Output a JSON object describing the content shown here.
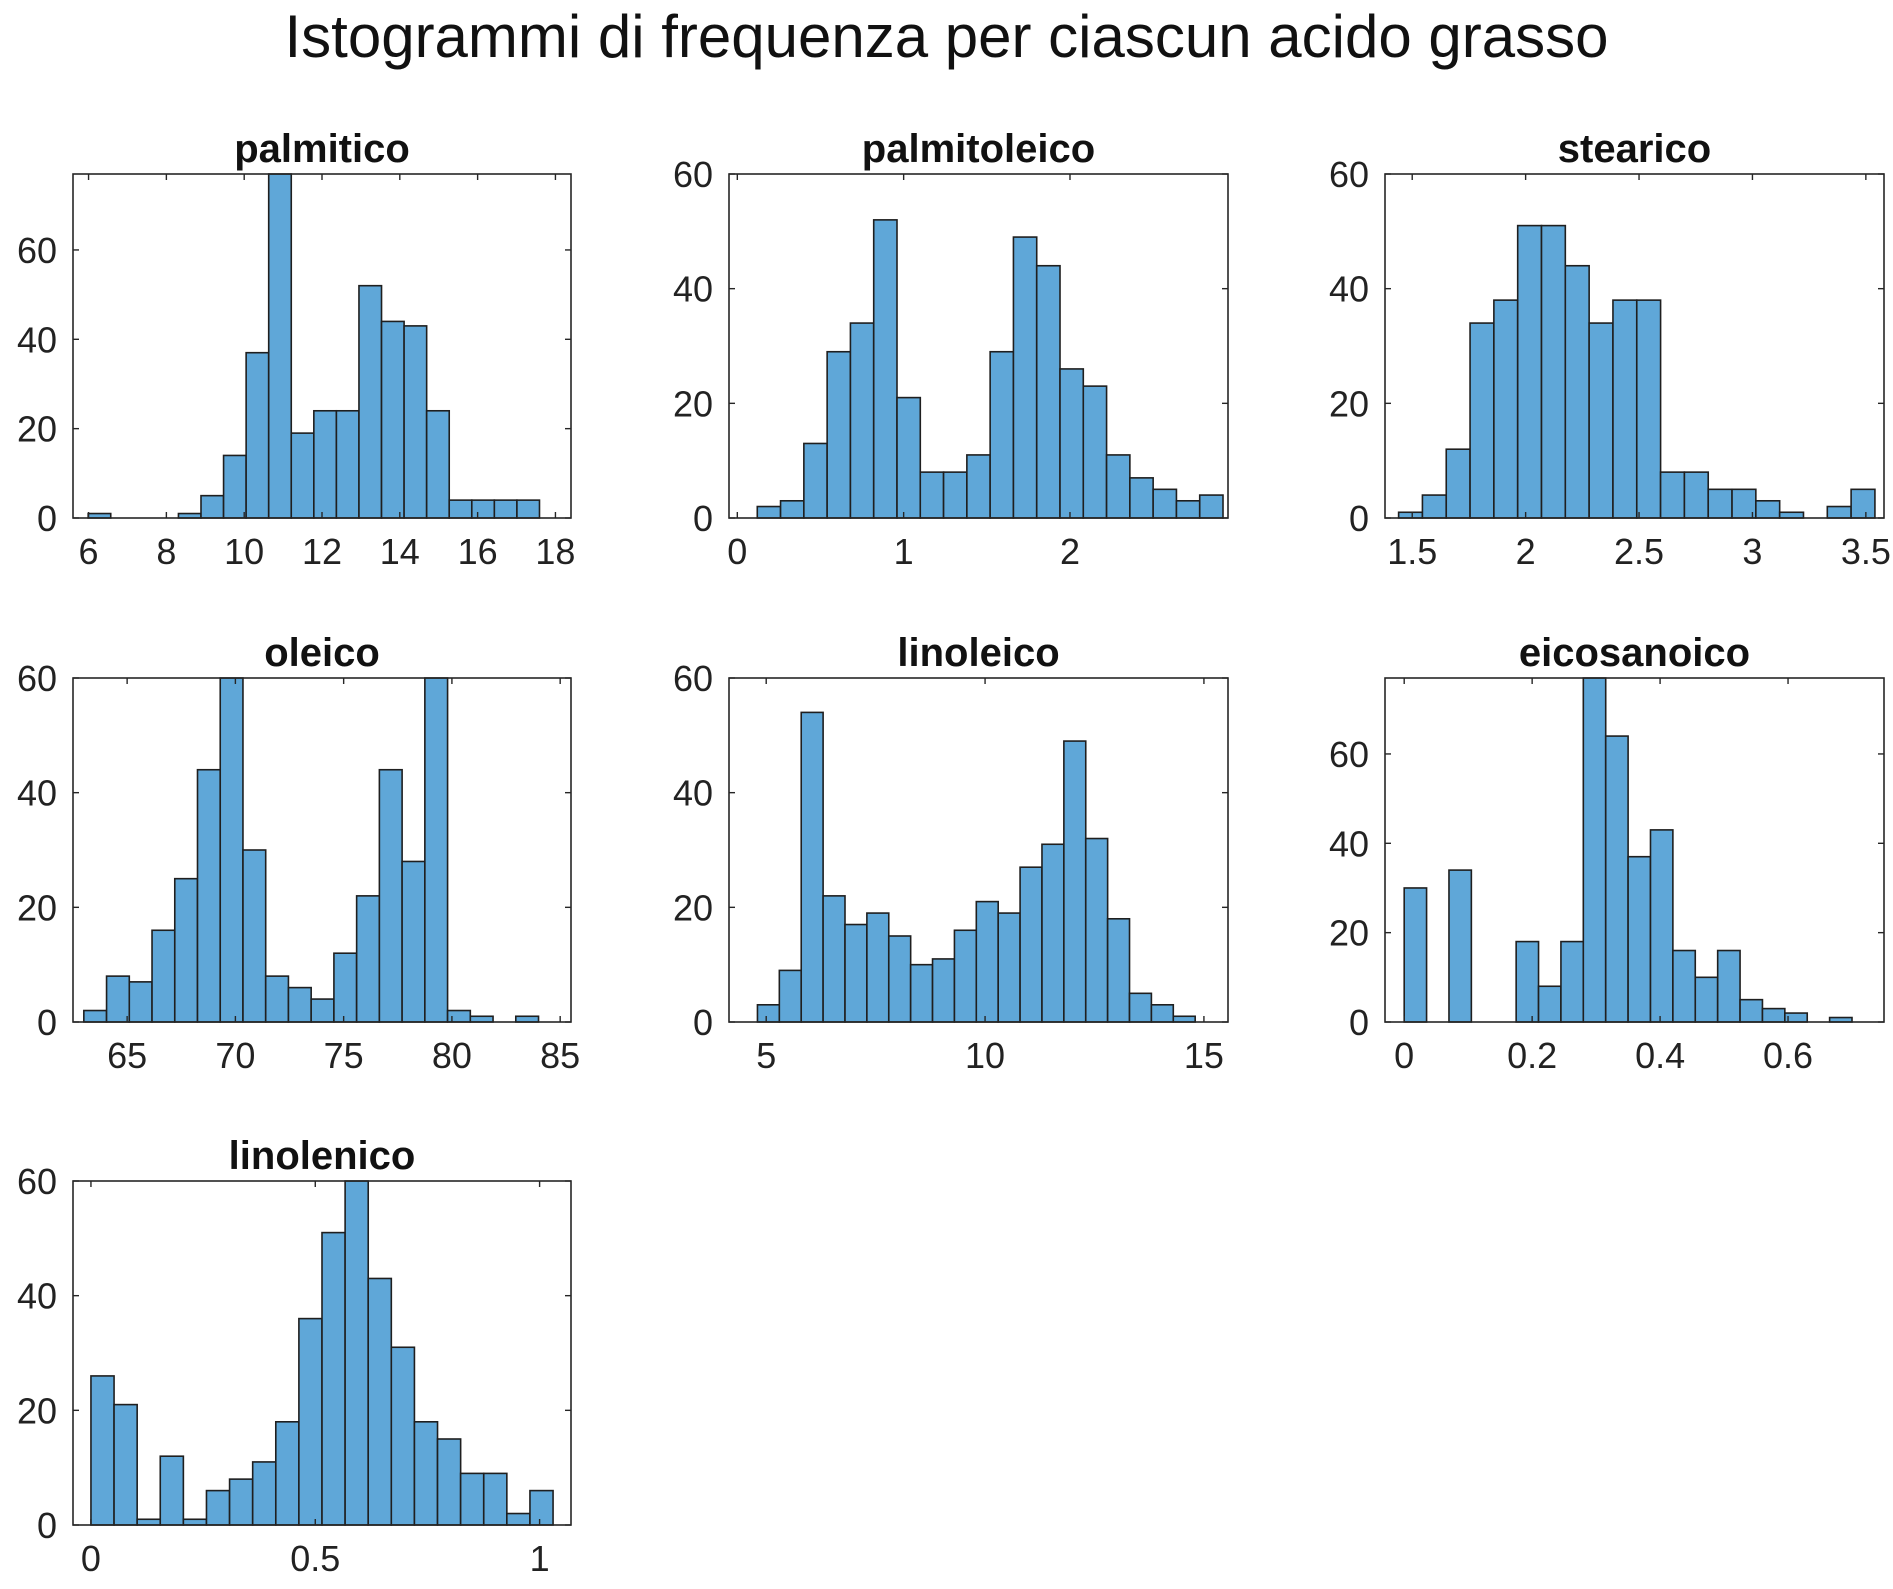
{
  "figure": {
    "title": "Istogrammi di frequenza per ciascun acido grasso"
  },
  "style": {
    "bar_fill": "#5fa7d8",
    "bar_stroke": "#1f1f1f",
    "axes_color": "#262626"
  },
  "chart_data": [
    {
      "type": "bar",
      "title": "palmitico",
      "xlabel": "",
      "ylabel": "",
      "grid": false,
      "xlim": [
        5.6,
        18.4
      ],
      "ylim": [
        0,
        77
      ],
      "xticks": [
        6,
        8,
        10,
        12,
        14,
        16,
        18
      ],
      "xtick_labels": [
        "6",
        "8",
        "10",
        "12",
        "14",
        "16",
        "18"
      ],
      "yticks": [
        0,
        20,
        40,
        60
      ],
      "ytick_labels": [
        "0",
        "20",
        "40",
        "60"
      ],
      "bin_edges": [
        5.99,
        6.57,
        7.15,
        7.73,
        8.31,
        8.89,
        9.47,
        10.05,
        10.63,
        11.21,
        11.79,
        12.37,
        12.95,
        13.53,
        14.11,
        14.69,
        15.27,
        15.85,
        16.43,
        17.01,
        17.59
      ],
      "counts": [
        1,
        0,
        0,
        0,
        1,
        5,
        14,
        37,
        77,
        19,
        24,
        24,
        52,
        44,
        43,
        24,
        4,
        4,
        4,
        4
      ]
    },
    {
      "type": "bar",
      "title": "palmitoleico",
      "xlabel": "",
      "ylabel": "",
      "grid": false,
      "xlim": [
        -0.05,
        2.95
      ],
      "ylim": [
        0,
        60
      ],
      "xticks": [
        0,
        1,
        2
      ],
      "xtick_labels": [
        "0",
        "1",
        "2"
      ],
      "yticks": [
        0,
        20,
        40,
        60
      ],
      "ytick_labels": [
        "0",
        "20",
        "40",
        "60"
      ],
      "bin_edges": [
        0.12,
        0.26,
        0.4,
        0.54,
        0.68,
        0.82,
        0.96,
        1.1,
        1.24,
        1.38,
        1.52,
        1.66,
        1.8,
        1.94,
        2.08,
        2.22,
        2.36,
        2.5,
        2.64,
        2.78,
        2.92
      ],
      "counts": [
        2,
        3,
        13,
        29,
        34,
        52,
        21,
        8,
        8,
        11,
        29,
        49,
        44,
        26,
        23,
        11,
        7,
        5,
        3,
        4
      ]
    },
    {
      "type": "bar",
      "title": "stearico",
      "xlabel": "",
      "ylabel": "",
      "grid": false,
      "xlim": [
        1.38,
        3.58
      ],
      "ylim": [
        0,
        60
      ],
      "xticks": [
        1.5,
        2,
        2.5,
        3,
        3.5
      ],
      "xtick_labels": [
        "1.5",
        "2",
        "2.5",
        "3",
        "3.5"
      ],
      "yticks": [
        0,
        20,
        40,
        60
      ],
      "ytick_labels": [
        "0",
        "20",
        "40",
        "60"
      ],
      "bin_edges": [
        1.44,
        1.545,
        1.65,
        1.755,
        1.86,
        1.965,
        2.07,
        2.175,
        2.28,
        2.385,
        2.49,
        2.595,
        2.7,
        2.805,
        2.91,
        3.015,
        3.12,
        3.225,
        3.33,
        3.435,
        3.54
      ],
      "counts": [
        1,
        4,
        12,
        34,
        38,
        51,
        51,
        44,
        34,
        38,
        38,
        8,
        8,
        5,
        5,
        3,
        1,
        0,
        2,
        5
      ]
    },
    {
      "type": "bar",
      "title": "oleico",
      "xlabel": "",
      "ylabel": "",
      "grid": false,
      "xlim": [
        62.5,
        85.5
      ],
      "ylim": [
        0,
        60
      ],
      "xticks": [
        65,
        70,
        75,
        80,
        85
      ],
      "xtick_labels": [
        "65",
        "70",
        "75",
        "80",
        "85"
      ],
      "yticks": [
        0,
        20,
        40,
        60
      ],
      "ytick_labels": [
        "0",
        "20",
        "40",
        "60"
      ],
      "bin_edges": [
        63.0,
        64.05,
        65.1,
        66.15,
        67.2,
        68.25,
        69.3,
        70.35,
        71.4,
        72.45,
        73.5,
        74.55,
        75.6,
        76.65,
        77.7,
        78.75,
        79.8,
        80.85,
        81.9,
        82.95,
        84.0
      ],
      "counts": [
        2,
        8,
        7,
        16,
        25,
        44,
        60,
        30,
        8,
        6,
        4,
        12,
        22,
        44,
        28,
        67,
        2,
        1,
        0,
        1
      ]
    },
    {
      "type": "bar",
      "title": "linoleico",
      "xlabel": "",
      "ylabel": "",
      "grid": false,
      "xlim": [
        4.15,
        15.55
      ],
      "ylim": [
        0,
        60
      ],
      "xticks": [
        5,
        10,
        15
      ],
      "xtick_labels": [
        "5",
        "10",
        "15"
      ],
      "yticks": [
        0,
        20,
        40,
        60
      ],
      "ytick_labels": [
        "0",
        "20",
        "40",
        "60"
      ],
      "bin_edges": [
        4.8,
        5.3,
        5.8,
        6.3,
        6.8,
        7.3,
        7.8,
        8.3,
        8.8,
        9.3,
        9.8,
        10.3,
        10.8,
        11.3,
        11.8,
        12.3,
        12.8,
        13.3,
        13.8,
        14.3,
        14.8
      ],
      "counts": [
        3,
        9,
        54,
        22,
        17,
        19,
        15,
        10,
        11,
        16,
        21,
        19,
        27,
        31,
        49,
        32,
        18,
        5,
        3,
        1
      ]
    },
    {
      "type": "bar",
      "title": "eicosanoico",
      "xlabel": "",
      "ylabel": "",
      "grid": false,
      "xlim": [
        -0.03,
        0.75
      ],
      "ylim": [
        0,
        77
      ],
      "xticks": [
        0,
        0.2,
        0.4,
        0.6
      ],
      "xtick_labels": [
        "0",
        "0.2",
        "0.4",
        "0.6"
      ],
      "yticks": [
        0,
        20,
        40,
        60
      ],
      "ytick_labels": [
        "0",
        "20",
        "40",
        "60"
      ],
      "bin_edges": [
        0.0,
        0.035,
        0.07,
        0.105,
        0.14,
        0.175,
        0.21,
        0.245,
        0.28,
        0.315,
        0.35,
        0.385,
        0.42,
        0.455,
        0.49,
        0.525,
        0.56,
        0.595,
        0.63,
        0.665,
        0.7
      ],
      "counts": [
        30,
        0,
        34,
        0,
        0,
        18,
        8,
        18,
        77,
        64,
        37,
        43,
        16,
        10,
        16,
        5,
        3,
        2,
        0,
        1
      ]
    },
    {
      "type": "bar",
      "title": "linolenico",
      "xlabel": "",
      "ylabel": "",
      "grid": false,
      "xlim": [
        -0.04,
        1.07
      ],
      "ylim": [
        0,
        60
      ],
      "xticks": [
        0,
        0.5,
        1
      ],
      "xtick_labels": [
        "0",
        "0.5",
        "1"
      ],
      "yticks": [
        0,
        20,
        40,
        60
      ],
      "ytick_labels": [
        "0",
        "20",
        "40",
        "60"
      ],
      "bin_edges": [
        0.0,
        0.0515,
        0.103,
        0.1545,
        0.206,
        0.2575,
        0.309,
        0.3605,
        0.412,
        0.4635,
        0.515,
        0.5665,
        0.618,
        0.6695,
        0.721,
        0.7725,
        0.824,
        0.8755,
        0.927,
        0.9785,
        1.03
      ],
      "counts": [
        26,
        21,
        1,
        12,
        1,
        6,
        8,
        11,
        18,
        36,
        51,
        64,
        43,
        31,
        18,
        15,
        9,
        9,
        2,
        6
      ]
    }
  ]
}
